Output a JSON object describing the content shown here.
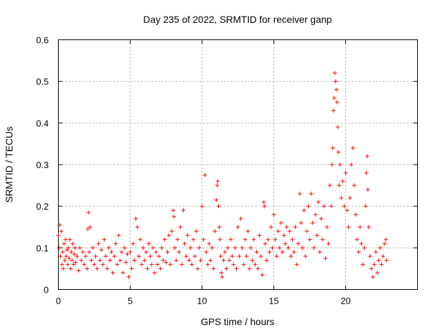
{
  "chart_data": {
    "type": "scatter",
    "title": "Day 235 of 2022, SRMTID for receiver ganp",
    "xlabel": "GPS time / hours",
    "ylabel": "SRMTID / TECUs",
    "xlim": [
      0,
      25
    ],
    "ylim": [
      0,
      0.6
    ],
    "xticks": [
      0,
      5,
      10,
      15,
      20
    ],
    "yticks": [
      0,
      0.1,
      0.2,
      0.3,
      0.4,
      0.5,
      0.6
    ],
    "xtick_labels": [
      "0",
      "5",
      "10",
      "15",
      "20"
    ],
    "ytick_labels": [
      "0",
      "0.1",
      "0.2",
      "0.3",
      "0.4",
      "0.5",
      "0.6"
    ],
    "grid": true,
    "marker": "+",
    "color": "#ff0000",
    "series": [
      {
        "name": "SRMTID",
        "points": [
          [
            0.0,
            0.13
          ],
          [
            0.05,
            0.1
          ],
          [
            0.1,
            0.155
          ],
          [
            0.15,
            0.08
          ],
          [
            0.2,
            0.14
          ],
          [
            0.25,
            0.06
          ],
          [
            0.3,
            0.09
          ],
          [
            0.35,
            0.05
          ],
          [
            0.4,
            0.11
          ],
          [
            0.45,
            0.07
          ],
          [
            0.5,
            0.12
          ],
          [
            0.55,
            0.08
          ],
          [
            0.6,
            0.095
          ],
          [
            0.65,
            0.06
          ],
          [
            0.7,
            0.1
          ],
          [
            0.75,
            0.075
          ],
          [
            0.8,
            0.12
          ],
          [
            0.85,
            0.05
          ],
          [
            0.9,
            0.09
          ],
          [
            0.95,
            0.07
          ],
          [
            1.0,
            0.11
          ],
          [
            1.05,
            0.06
          ],
          [
            1.1,
            0.085
          ],
          [
            1.15,
            0.1
          ],
          [
            1.2,
            0.065
          ],
          [
            1.3,
            0.08
          ],
          [
            1.4,
            0.045
          ],
          [
            1.5,
            0.1
          ],
          [
            1.6,
            0.07
          ],
          [
            1.7,
            0.09
          ],
          [
            1.8,
            0.06
          ],
          [
            1.9,
            0.08
          ],
          [
            2.0,
            0.05
          ],
          [
            2.05,
            0.145
          ],
          [
            2.1,
            0.185
          ],
          [
            2.15,
            0.09
          ],
          [
            2.2,
            0.15
          ],
          [
            2.3,
            0.07
          ],
          [
            2.4,
            0.1
          ],
          [
            2.5,
            0.06
          ],
          [
            2.6,
            0.08
          ],
          [
            2.7,
            0.05
          ],
          [
            2.8,
            0.11
          ],
          [
            2.9,
            0.07
          ],
          [
            3.0,
            0.095
          ],
          [
            3.1,
            0.06
          ],
          [
            3.2,
            0.12
          ],
          [
            3.3,
            0.08
          ],
          [
            3.4,
            0.05
          ],
          [
            3.5,
            0.1
          ],
          [
            3.6,
            0.07
          ],
          [
            3.7,
            0.09
          ],
          [
            3.8,
            0.04
          ],
          [
            3.9,
            0.08
          ],
          [
            4.0,
            0.11
          ],
          [
            4.1,
            0.06
          ],
          [
            4.2,
            0.13
          ],
          [
            4.3,
            0.07
          ],
          [
            4.4,
            0.09
          ],
          [
            4.5,
            0.04
          ],
          [
            4.6,
            0.1
          ],
          [
            4.7,
            0.065
          ],
          [
            4.8,
            0.085
          ],
          [
            4.9,
            0.03
          ],
          [
            5.0,
            0.09
          ],
          [
            5.1,
            0.05
          ],
          [
            5.2,
            0.11
          ],
          [
            5.3,
            0.07
          ],
          [
            5.4,
            0.17
          ],
          [
            5.5,
            0.15
          ],
          [
            5.6,
            0.08
          ],
          [
            5.7,
            0.12
          ],
          [
            5.8,
            0.06
          ],
          [
            5.9,
            0.1
          ],
          [
            6.0,
            0.07
          ],
          [
            6.1,
            0.09
          ],
          [
            6.2,
            0.05
          ],
          [
            6.3,
            0.11
          ],
          [
            6.4,
            0.08
          ],
          [
            6.5,
            0.06
          ],
          [
            6.6,
            0.1
          ],
          [
            6.7,
            0.04
          ],
          [
            6.8,
            0.09
          ],
          [
            6.9,
            0.06
          ],
          [
            7.0,
            0.08
          ],
          [
            7.1,
            0.05
          ],
          [
            7.2,
            0.1
          ],
          [
            7.3,
            0.07
          ],
          [
            7.4,
            0.12
          ],
          [
            7.5,
            0.065
          ],
          [
            7.6,
            0.09
          ],
          [
            7.7,
            0.13
          ],
          [
            7.8,
            0.06
          ],
          [
            7.9,
            0.14
          ],
          [
            8.0,
            0.19
          ],
          [
            8.05,
            0.175
          ],
          [
            8.1,
            0.1
          ],
          [
            8.2,
            0.07
          ],
          [
            8.3,
            0.12
          ],
          [
            8.4,
            0.09
          ],
          [
            8.5,
            0.15
          ],
          [
            8.6,
            0.06
          ],
          [
            8.7,
            0.19
          ],
          [
            8.8,
            0.11
          ],
          [
            8.9,
            0.08
          ],
          [
            9.0,
            0.13
          ],
          [
            9.1,
            0.07
          ],
          [
            9.2,
            0.1
          ],
          [
            9.3,
            0.06
          ],
          [
            9.4,
            0.12
          ],
          [
            9.5,
            0.08
          ],
          [
            9.6,
            0.14
          ],
          [
            9.7,
            0.05
          ],
          [
            9.8,
            0.1
          ],
          [
            9.9,
            0.07
          ],
          [
            10.0,
            0.2
          ],
          [
            10.1,
            0.12
          ],
          [
            10.2,
            0.275
          ],
          [
            10.3,
            0.09
          ],
          [
            10.4,
            0.06
          ],
          [
            10.5,
            0.11
          ],
          [
            10.6,
            0.07
          ],
          [
            10.7,
            0.1
          ],
          [
            10.8,
            0.05
          ],
          [
            10.9,
            0.14
          ],
          [
            11.0,
            0.215
          ],
          [
            11.05,
            0.25
          ],
          [
            11.1,
            0.26
          ],
          [
            11.15,
            0.2
          ],
          [
            11.2,
            0.15
          ],
          [
            11.25,
            0.12
          ],
          [
            11.3,
            0.08
          ],
          [
            11.35,
            0.04
          ],
          [
            11.4,
            0.03
          ],
          [
            11.5,
            0.07
          ],
          [
            11.6,
            0.09
          ],
          [
            11.7,
            0.05
          ],
          [
            11.8,
            0.1
          ],
          [
            11.9,
            0.07
          ],
          [
            12.0,
            0.12
          ],
          [
            12.1,
            0.08
          ],
          [
            12.2,
            0.06
          ],
          [
            12.3,
            0.1
          ],
          [
            12.4,
            0.05
          ],
          [
            12.5,
            0.15
          ],
          [
            12.6,
            0.08
          ],
          [
            12.7,
            0.17
          ],
          [
            12.8,
            0.1
          ],
          [
            12.9,
            0.06
          ],
          [
            13.0,
            0.12
          ],
          [
            13.1,
            0.08
          ],
          [
            13.2,
            0.14
          ],
          [
            13.3,
            0.05
          ],
          [
            13.4,
            0.1
          ],
          [
            13.5,
            0.07
          ],
          [
            13.6,
            0.12
          ],
          [
            13.7,
            0.06
          ],
          [
            13.8,
            0.09
          ],
          [
            13.9,
            0.05
          ],
          [
            14.0,
            0.13
          ],
          [
            14.1,
            0.08
          ],
          [
            14.2,
            0.035
          ],
          [
            14.3,
            0.21
          ],
          [
            14.35,
            0.2
          ],
          [
            14.4,
            0.11
          ],
          [
            14.5,
            0.07
          ],
          [
            14.6,
            0.12
          ],
          [
            14.7,
            0.09
          ],
          [
            14.8,
            0.15
          ],
          [
            14.9,
            0.1
          ],
          [
            15.0,
            0.18
          ],
          [
            15.1,
            0.12
          ],
          [
            15.2,
            0.08
          ],
          [
            15.3,
            0.14
          ],
          [
            15.4,
            0.1
          ],
          [
            15.5,
            0.16
          ],
          [
            15.6,
            0.09
          ],
          [
            15.7,
            0.13
          ],
          [
            15.8,
            0.11
          ],
          [
            15.9,
            0.15
          ],
          [
            16.0,
            0.1
          ],
          [
            16.1,
            0.14
          ],
          [
            16.2,
            0.08
          ],
          [
            16.3,
            0.12
          ],
          [
            16.4,
            0.09
          ],
          [
            16.5,
            0.15
          ],
          [
            16.6,
            0.06
          ],
          [
            16.7,
            0.11
          ],
          [
            16.8,
            0.23
          ],
          [
            16.9,
            0.16
          ],
          [
            17.0,
            0.1
          ],
          [
            17.1,
            0.19
          ],
          [
            17.2,
            0.08
          ],
          [
            17.3,
            0.14
          ],
          [
            17.4,
            0.2
          ],
          [
            17.5,
            0.12
          ],
          [
            17.6,
            0.23
          ],
          [
            17.7,
            0.16
          ],
          [
            17.8,
            0.1
          ],
          [
            17.9,
            0.18
          ],
          [
            18.0,
            0.13
          ],
          [
            18.1,
            0.21
          ],
          [
            18.2,
            0.09
          ],
          [
            18.3,
            0.17
          ],
          [
            18.4,
            0.12
          ],
          [
            18.5,
            0.2
          ],
          [
            18.6,
            0.075
          ],
          [
            18.7,
            0.15
          ],
          [
            18.8,
            0.11
          ],
          [
            18.9,
            0.25
          ],
          [
            19.0,
            0.2
          ],
          [
            19.05,
            0.3
          ],
          [
            19.1,
            0.34
          ],
          [
            19.15,
            0.43
          ],
          [
            19.2,
            0.46
          ],
          [
            19.25,
            0.52
          ],
          [
            19.3,
            0.5
          ],
          [
            19.35,
            0.48
          ],
          [
            19.4,
            0.45
          ],
          [
            19.45,
            0.39
          ],
          [
            19.5,
            0.33
          ],
          [
            19.55,
            0.25
          ],
          [
            19.6,
            0.3
          ],
          [
            19.7,
            0.22
          ],
          [
            19.8,
            0.26
          ],
          [
            19.9,
            0.2
          ],
          [
            20.0,
            0.28
          ],
          [
            20.1,
            0.19
          ],
          [
            20.2,
            0.15
          ],
          [
            20.3,
            0.22
          ],
          [
            20.4,
            0.3
          ],
          [
            20.5,
            0.34
          ],
          [
            20.6,
            0.25
          ],
          [
            20.7,
            0.18
          ],
          [
            20.8,
            0.12
          ],
          [
            20.9,
            0.09
          ],
          [
            21.0,
            0.15
          ],
          [
            21.1,
            0.11
          ],
          [
            21.2,
            0.06
          ],
          [
            21.3,
            0.1
          ],
          [
            21.4,
            0.2
          ],
          [
            21.45,
            0.28
          ],
          [
            21.5,
            0.32
          ],
          [
            21.55,
            0.24
          ],
          [
            21.6,
            0.15
          ],
          [
            21.7,
            0.08
          ],
          [
            21.8,
            0.05
          ],
          [
            21.9,
            0.03
          ],
          [
            22.0,
            0.06
          ],
          [
            22.1,
            0.09
          ],
          [
            22.2,
            0.04
          ],
          [
            22.3,
            0.07
          ],
          [
            22.4,
            0.1
          ],
          [
            22.5,
            0.06
          ],
          [
            22.6,
            0.08
          ],
          [
            22.7,
            0.11
          ],
          [
            22.8,
            0.12
          ],
          [
            22.85,
            0.07
          ]
        ]
      }
    ]
  }
}
